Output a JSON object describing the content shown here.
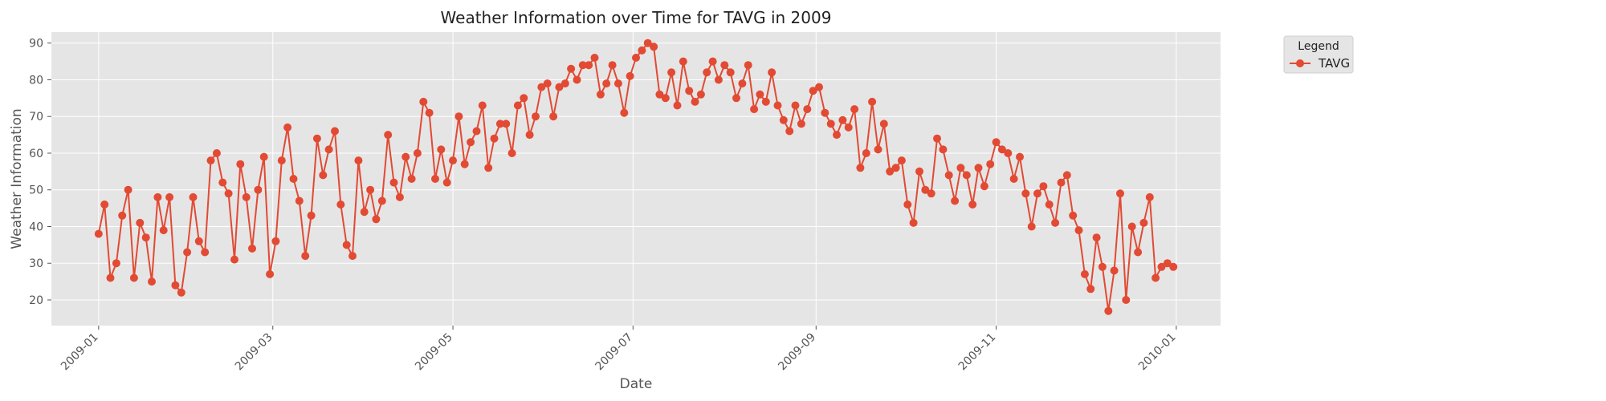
{
  "chart_data": {
    "type": "line",
    "title": "Weather Information over Time for TAVG in 2009",
    "xlabel": "Date",
    "ylabel": "Weather Information",
    "xlim": [
      "2008-12-16",
      "2010-01-16"
    ],
    "ylim": [
      13,
      93
    ],
    "y_ticks": [
      20,
      30,
      40,
      50,
      60,
      70,
      80,
      90
    ],
    "x_ticks": [
      "2009-01-01",
      "2009-03-01",
      "2009-05-01",
      "2009-07-01",
      "2009-09-01",
      "2009-11-01",
      "2010-01-01"
    ],
    "x_tick_labels": [
      "2009-01",
      "2009-03",
      "2009-05",
      "2009-07",
      "2009-09",
      "2009-11",
      "2010-01"
    ],
    "grid": true,
    "legend": {
      "title": "Legend",
      "position": "outside-top-right"
    },
    "x": [
      "2009-01-01",
      "2009-01-03",
      "2009-01-05",
      "2009-01-07",
      "2009-01-09",
      "2009-01-11",
      "2009-01-13",
      "2009-01-15",
      "2009-01-17",
      "2009-01-19",
      "2009-01-21",
      "2009-01-23",
      "2009-01-25",
      "2009-01-27",
      "2009-01-29",
      "2009-01-31",
      "2009-02-02",
      "2009-02-04",
      "2009-02-06",
      "2009-02-08",
      "2009-02-10",
      "2009-02-12",
      "2009-02-14",
      "2009-02-16",
      "2009-02-18",
      "2009-02-20",
      "2009-02-22",
      "2009-02-24",
      "2009-02-26",
      "2009-02-28",
      "2009-03-02",
      "2009-03-04",
      "2009-03-06",
      "2009-03-08",
      "2009-03-10",
      "2009-03-12",
      "2009-03-14",
      "2009-03-16",
      "2009-03-18",
      "2009-03-20",
      "2009-03-22",
      "2009-03-24",
      "2009-03-26",
      "2009-03-28",
      "2009-03-30",
      "2009-04-01",
      "2009-04-03",
      "2009-04-05",
      "2009-04-07",
      "2009-04-09",
      "2009-04-11",
      "2009-04-13",
      "2009-04-15",
      "2009-04-17",
      "2009-04-19",
      "2009-04-21",
      "2009-04-23",
      "2009-04-25",
      "2009-04-27",
      "2009-04-29",
      "2009-05-01",
      "2009-05-03",
      "2009-05-05",
      "2009-05-07",
      "2009-05-09",
      "2009-05-11",
      "2009-05-13",
      "2009-05-15",
      "2009-05-17",
      "2009-05-19",
      "2009-05-21",
      "2009-05-23",
      "2009-05-25",
      "2009-05-27",
      "2009-05-29",
      "2009-05-31",
      "2009-06-02",
      "2009-06-04",
      "2009-06-06",
      "2009-06-08",
      "2009-06-10",
      "2009-06-12",
      "2009-06-14",
      "2009-06-16",
      "2009-06-18",
      "2009-06-20",
      "2009-06-22",
      "2009-06-24",
      "2009-06-26",
      "2009-06-28",
      "2009-06-30",
      "2009-07-02",
      "2009-07-04",
      "2009-07-06",
      "2009-07-08",
      "2009-07-10",
      "2009-07-12",
      "2009-07-14",
      "2009-07-16",
      "2009-07-18",
      "2009-07-20",
      "2009-07-22",
      "2009-07-24",
      "2009-07-26",
      "2009-07-28",
      "2009-07-30",
      "2009-08-01",
      "2009-08-03",
      "2009-08-05",
      "2009-08-07",
      "2009-08-09",
      "2009-08-11",
      "2009-08-13",
      "2009-08-15",
      "2009-08-17",
      "2009-08-19",
      "2009-08-21",
      "2009-08-23",
      "2009-08-25",
      "2009-08-27",
      "2009-08-29",
      "2009-08-31",
      "2009-09-02",
      "2009-09-04",
      "2009-09-06",
      "2009-09-08",
      "2009-09-10",
      "2009-09-12",
      "2009-09-14",
      "2009-09-16",
      "2009-09-18",
      "2009-09-20",
      "2009-09-22",
      "2009-09-24",
      "2009-09-26",
      "2009-09-28",
      "2009-09-30",
      "2009-10-02",
      "2009-10-04",
      "2009-10-06",
      "2009-10-08",
      "2009-10-10",
      "2009-10-12",
      "2009-10-14",
      "2009-10-16",
      "2009-10-18",
      "2009-10-20",
      "2009-10-22",
      "2009-10-24",
      "2009-10-26",
      "2009-10-28",
      "2009-10-30",
      "2009-11-01",
      "2009-11-03",
      "2009-11-05",
      "2009-11-07",
      "2009-11-09",
      "2009-11-11",
      "2009-11-13",
      "2009-11-15",
      "2009-11-17",
      "2009-11-19",
      "2009-11-21",
      "2009-11-23",
      "2009-11-25",
      "2009-11-27",
      "2009-11-29",
      "2009-12-01",
      "2009-12-03",
      "2009-12-05",
      "2009-12-07",
      "2009-12-09",
      "2009-12-11",
      "2009-12-13",
      "2009-12-15",
      "2009-12-17",
      "2009-12-19",
      "2009-12-21",
      "2009-12-23",
      "2009-12-25",
      "2009-12-27",
      "2009-12-29",
      "2009-12-31"
    ],
    "series": [
      {
        "name": "TAVG",
        "color": "#E24A33",
        "values": [
          38,
          46,
          26,
          30,
          43,
          50,
          26,
          41,
          37,
          25,
          48,
          39,
          48,
          24,
          22,
          33,
          48,
          36,
          33,
          58,
          60,
          52,
          49,
          31,
          57,
          48,
          34,
          50,
          59,
          27,
          36,
          58,
          67,
          53,
          47,
          32,
          43,
          64,
          54,
          61,
          66,
          46,
          35,
          32,
          58,
          44,
          50,
          42,
          47,
          65,
          52,
          48,
          59,
          53,
          60,
          74,
          71,
          53,
          61,
          52,
          58,
          70,
          57,
          63,
          66,
          73,
          56,
          64,
          68,
          68,
          60,
          73,
          75,
          65,
          70,
          78,
          79,
          70,
          78,
          79,
          83,
          80,
          84,
          84,
          86,
          76,
          79,
          84,
          79,
          71,
          81,
          86,
          88,
          90,
          89,
          76,
          75,
          82,
          73,
          85,
          77,
          74,
          76,
          82,
          85,
          80,
          84,
          82,
          75,
          79,
          84,
          72,
          76,
          74,
          82,
          73,
          69,
          66,
          73,
          68,
          72,
          77,
          78,
          71,
          68,
          65,
          69,
          67,
          72,
          56,
          60,
          74,
          61,
          68,
          55,
          56,
          58,
          46,
          41,
          55,
          50,
          49,
          64,
          61,
          54,
          47,
          56,
          54,
          46,
          56,
          51,
          57,
          63,
          61,
          60,
          53,
          59,
          49,
          40,
          49,
          51,
          46,
          41,
          52,
          54,
          43,
          39,
          27,
          23,
          37,
          29,
          17,
          28,
          49,
          20,
          40,
          33,
          41,
          48,
          26,
          29,
          30,
          29
        ]
      }
    ]
  }
}
